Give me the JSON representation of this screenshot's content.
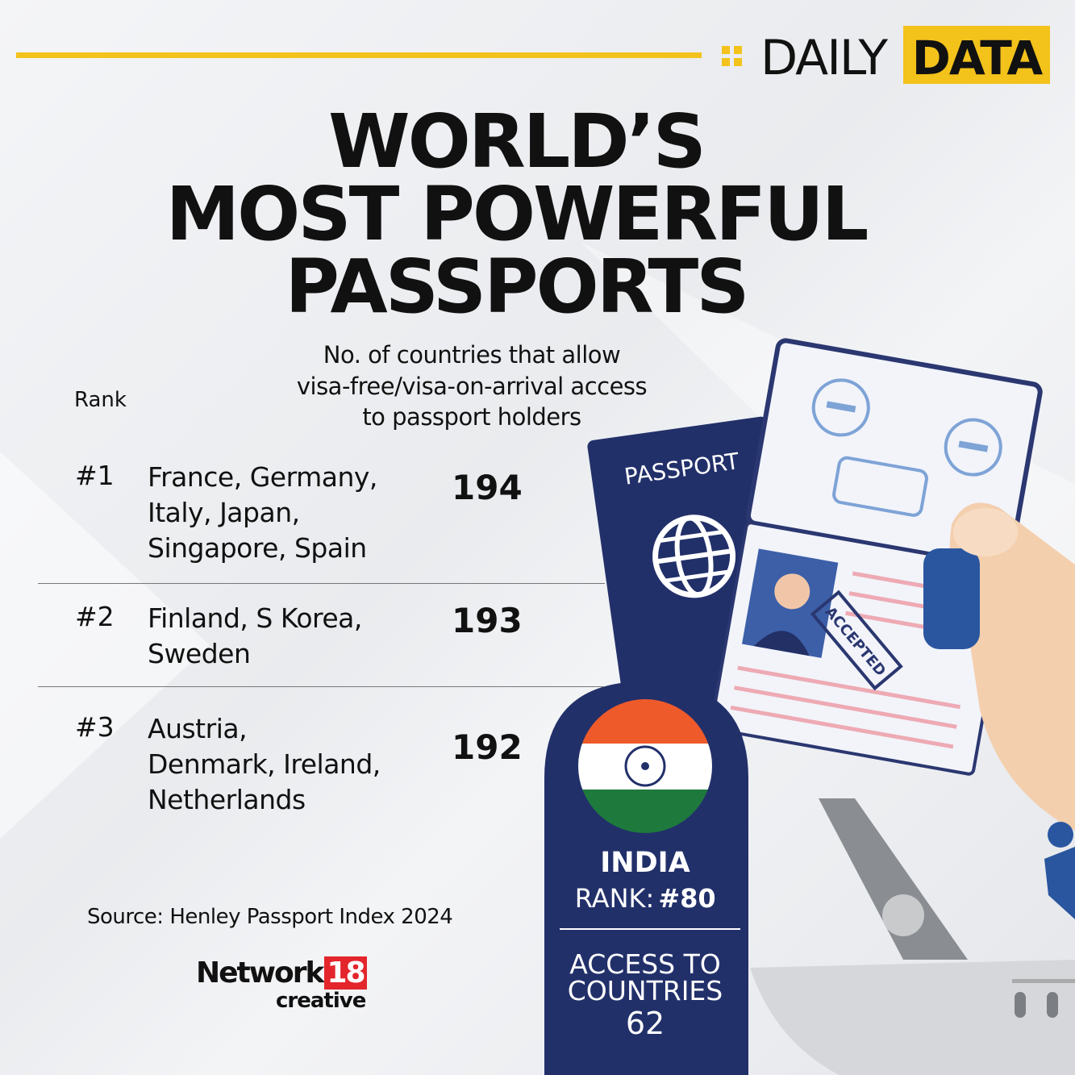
{
  "header": {
    "label_left": "DAILY",
    "label_right": "DATA"
  },
  "title": [
    "WORLD’S",
    "MOST POWERFUL",
    "PASSPORTS"
  ],
  "subtitle": [
    "No. of countries that allow",
    "visa-free/visa-on-arrival access",
    "to passport holders"
  ],
  "table": {
    "rank_header": "Rank",
    "rows": [
      {
        "rank": "#1",
        "countries": [
          "France, Germany,",
          "Italy, Japan,",
          "Singapore, Spain"
        ],
        "value": 194
      },
      {
        "rank": "#2",
        "countries": [
          "Finland, S Korea,",
          "Sweden"
        ],
        "value": 193
      },
      {
        "rank": "#3",
        "countries": [
          "Austria,",
          "Denmark, Ireland,",
          "Netherlands"
        ],
        "value": 192
      }
    ]
  },
  "india": {
    "name": "INDIA",
    "rank_label": "RANK:",
    "rank": "#80",
    "access_label": [
      "ACCESS TO",
      "COUNTRIES"
    ],
    "access": 62
  },
  "illustration": {
    "passport": "PASSPORT",
    "stamp": "ACCEPTED"
  },
  "source": "Source: Henley Passport Index 2024",
  "logo": {
    "name": "Network",
    "number": "18",
    "sub": "creative"
  }
}
